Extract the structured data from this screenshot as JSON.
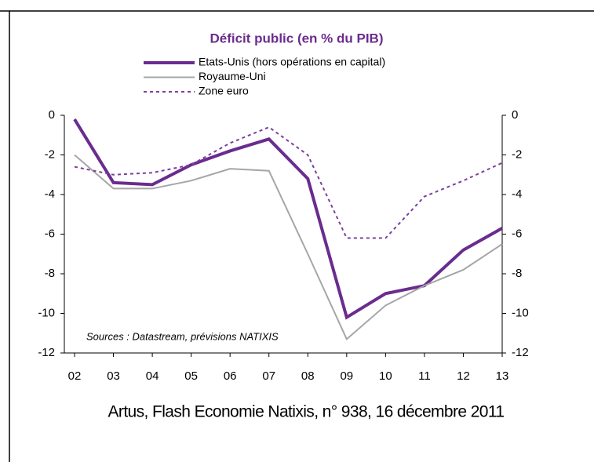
{
  "chart_data": {
    "type": "line",
    "title": "Déficit public (en % du PIB)",
    "annotation": "Sources : Datastream, prévisions NATIXIS",
    "caption": "Artus, Flash Economie Natixis, n° 938, 16 décembre 2011",
    "categories": [
      "02",
      "03",
      "04",
      "05",
      "06",
      "07",
      "08",
      "09",
      "10",
      "11",
      "12",
      "13"
    ],
    "series": [
      {
        "name": "Etats-Unis (hors opérations en capital)",
        "color": "#6a2c8e",
        "style": "solid-thick",
        "values": [
          -0.2,
          -3.4,
          -3.5,
          -2.5,
          -1.8,
          -1.2,
          -3.2,
          -10.2,
          -9.0,
          -8.6,
          -6.8,
          -5.7
        ]
      },
      {
        "name": "Royaume-Uni",
        "color": "#a6a6a6",
        "style": "solid",
        "values": [
          -2.0,
          -3.7,
          -3.7,
          -3.3,
          -2.7,
          -2.8,
          -7.0,
          -11.3,
          -9.6,
          -8.6,
          -7.8,
          -6.5
        ]
      },
      {
        "name": "Zone euro",
        "color": "#7b3f9e",
        "style": "dashed",
        "values": [
          -2.6,
          -3.0,
          -2.9,
          -2.5,
          -1.4,
          -0.6,
          -2.0,
          -6.2,
          -6.2,
          -4.1,
          -3.3,
          -2.4
        ]
      }
    ],
    "ylim": [
      -12,
      0
    ],
    "yticks": [
      0,
      -2,
      -4,
      -6,
      -8,
      -10,
      -12
    ],
    "y2lim": [
      -12,
      0
    ],
    "y2ticks": [
      0,
      -2,
      -4,
      -6,
      -8,
      -10,
      -12
    ],
    "grid": false
  }
}
